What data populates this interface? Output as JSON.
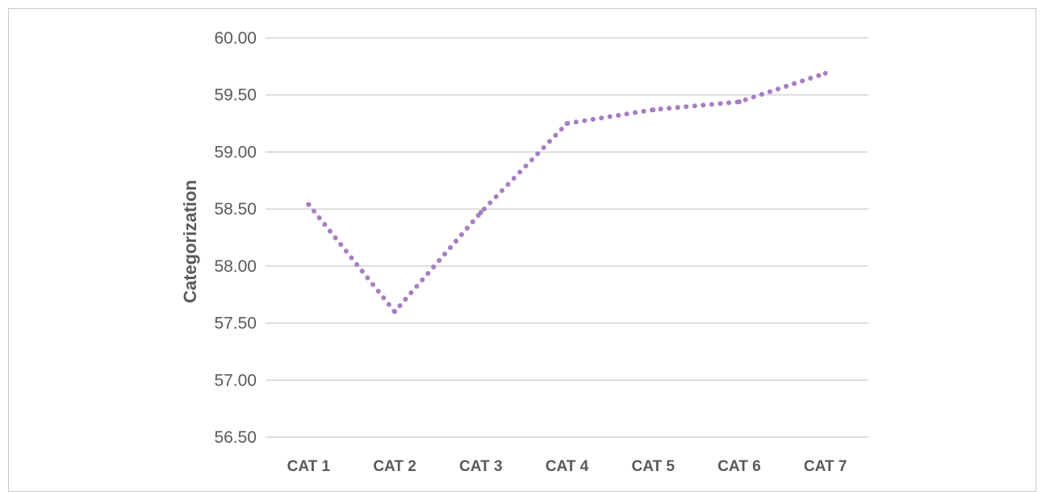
{
  "chart_data": {
    "type": "line",
    "categories": [
      "CAT 1",
      "CAT 2",
      "CAT 3",
      "CAT 4",
      "CAT 5",
      "CAT 6",
      "CAT 7"
    ],
    "series": [
      {
        "values": [
          58.54,
          57.6,
          58.47,
          59.25,
          59.37,
          59.44,
          59.69
        ]
      }
    ],
    "title": "",
    "xlabel": "",
    "ylabel": "Categorization",
    "ylim": [
      56.5,
      60.0
    ],
    "yticks": [
      "56.50",
      "57.00",
      "57.50",
      "58.00",
      "58.50",
      "59.00",
      "59.50",
      "60.00"
    ],
    "grid": "horizontal",
    "line_style": "dotted",
    "colors": {
      "series": "#a67fc2",
      "grid": "#bfbfbf",
      "text": "#595959"
    }
  }
}
